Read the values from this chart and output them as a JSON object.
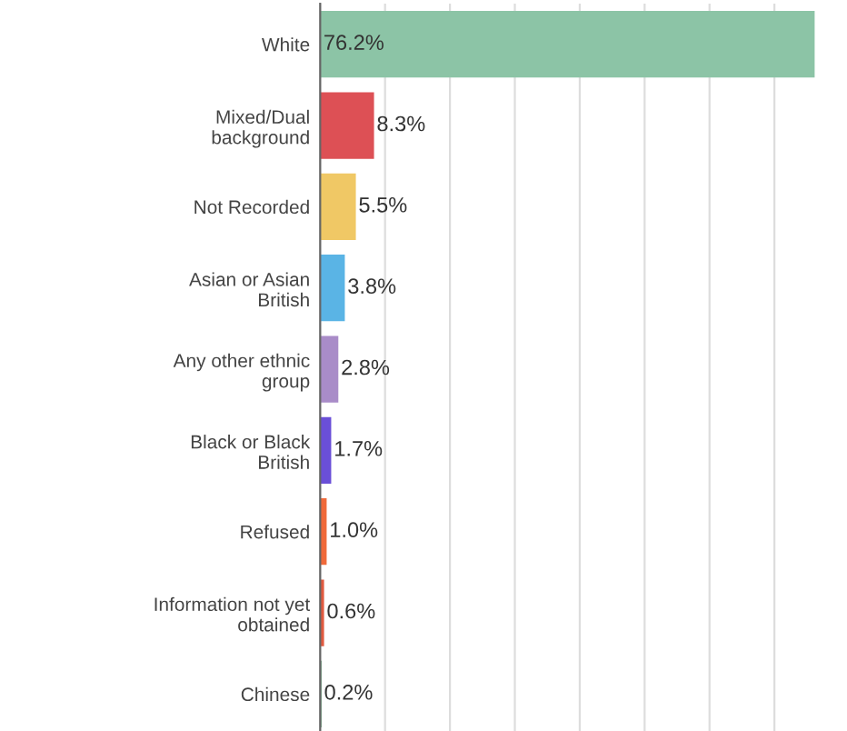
{
  "chart_data": {
    "type": "bar",
    "orientation": "horizontal",
    "categories": [
      "White",
      "Mixed/Dual\nbackground",
      "Not Recorded",
      "Asian or Asian\nBritish",
      "Any other ethnic\ngroup",
      "Black or Black\nBritish",
      "Refused",
      "Information not yet\nobtained",
      "Chinese"
    ],
    "values": [
      76.2,
      8.3,
      5.5,
      3.8,
      2.8,
      1.7,
      1.0,
      0.6,
      0.2
    ],
    "colors": [
      "#8cc4a6",
      "#dd5055",
      "#f0c865",
      "#5ab4e5",
      "#a98cc8",
      "#6a4fd8",
      "#f06a3a",
      "#e05a40",
      "#5a9a70"
    ],
    "value_labels": [
      "76.2%",
      "8.3%",
      "5.5%",
      "3.8%",
      "2.8%",
      "1.7%",
      "1.0%",
      "0.6%",
      "0.2%"
    ],
    "xticks": [
      {
        "value": 0,
        "label": null
      },
      {
        "value": 10,
        "label": null
      },
      {
        "value": 20,
        "label": null
      },
      {
        "value": 30,
        "label": null
      },
      {
        "value": 40,
        "label": null
      },
      {
        "value": 50,
        "label": null
      },
      {
        "value": 60,
        "label": null
      },
      {
        "value": 70,
        "label": null
      }
    ],
    "tick_labels": "y",
    "grid": "x",
    "legend": false
  }
}
